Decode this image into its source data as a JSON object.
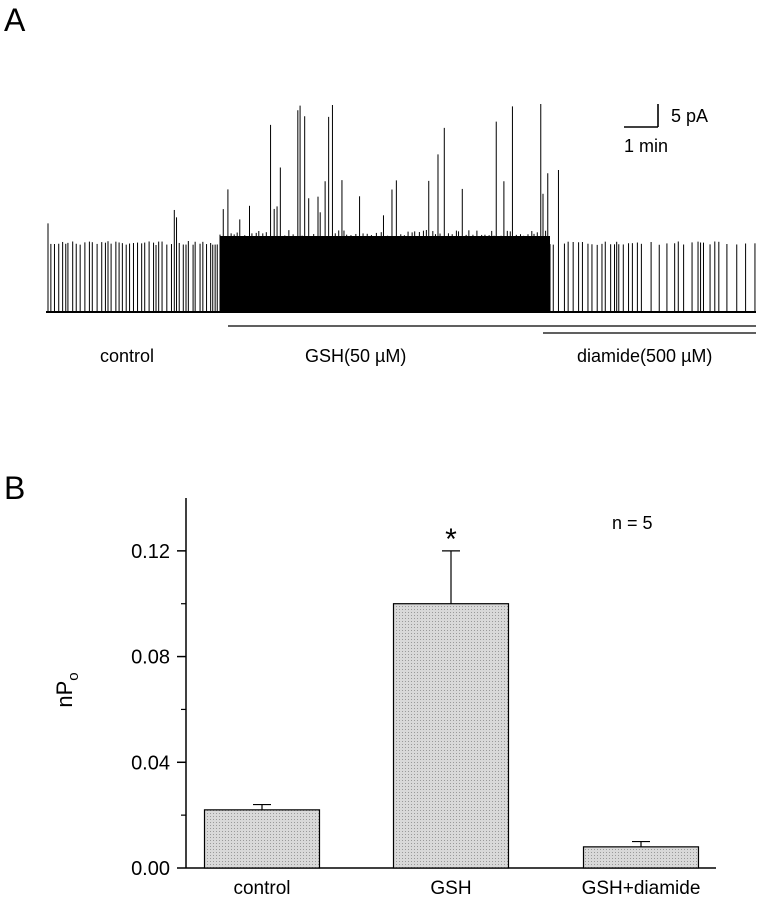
{
  "panel_a": {
    "letter": "A",
    "scale_bar": {
      "current_label": "5 pA",
      "time_label": "1 min"
    },
    "condition_labels": {
      "control": "control",
      "gsh": "GSH(50 µM)",
      "diamide": "diamide(500 µM)"
    }
  },
  "panel_b": {
    "letter": "B",
    "n_label": "n = 5",
    "significance_marker": "*"
  },
  "chart_data": {
    "type": "bar",
    "categories": [
      "control",
      "GSH",
      "GSH+diamide"
    ],
    "values": [
      0.022,
      0.1,
      0.008
    ],
    "errors": [
      0.002,
      0.02,
      0.002
    ],
    "ylabel": "nP",
    "ylabel_subscript": "o",
    "ylim": [
      0,
      0.14
    ],
    "yticks": [
      0.0,
      0.04,
      0.08,
      0.12
    ],
    "ytick_labels": [
      "0.00",
      "0.04",
      "0.08",
      "0.12"
    ],
    "bar_fill": "#d9d9d9",
    "grid": false
  }
}
